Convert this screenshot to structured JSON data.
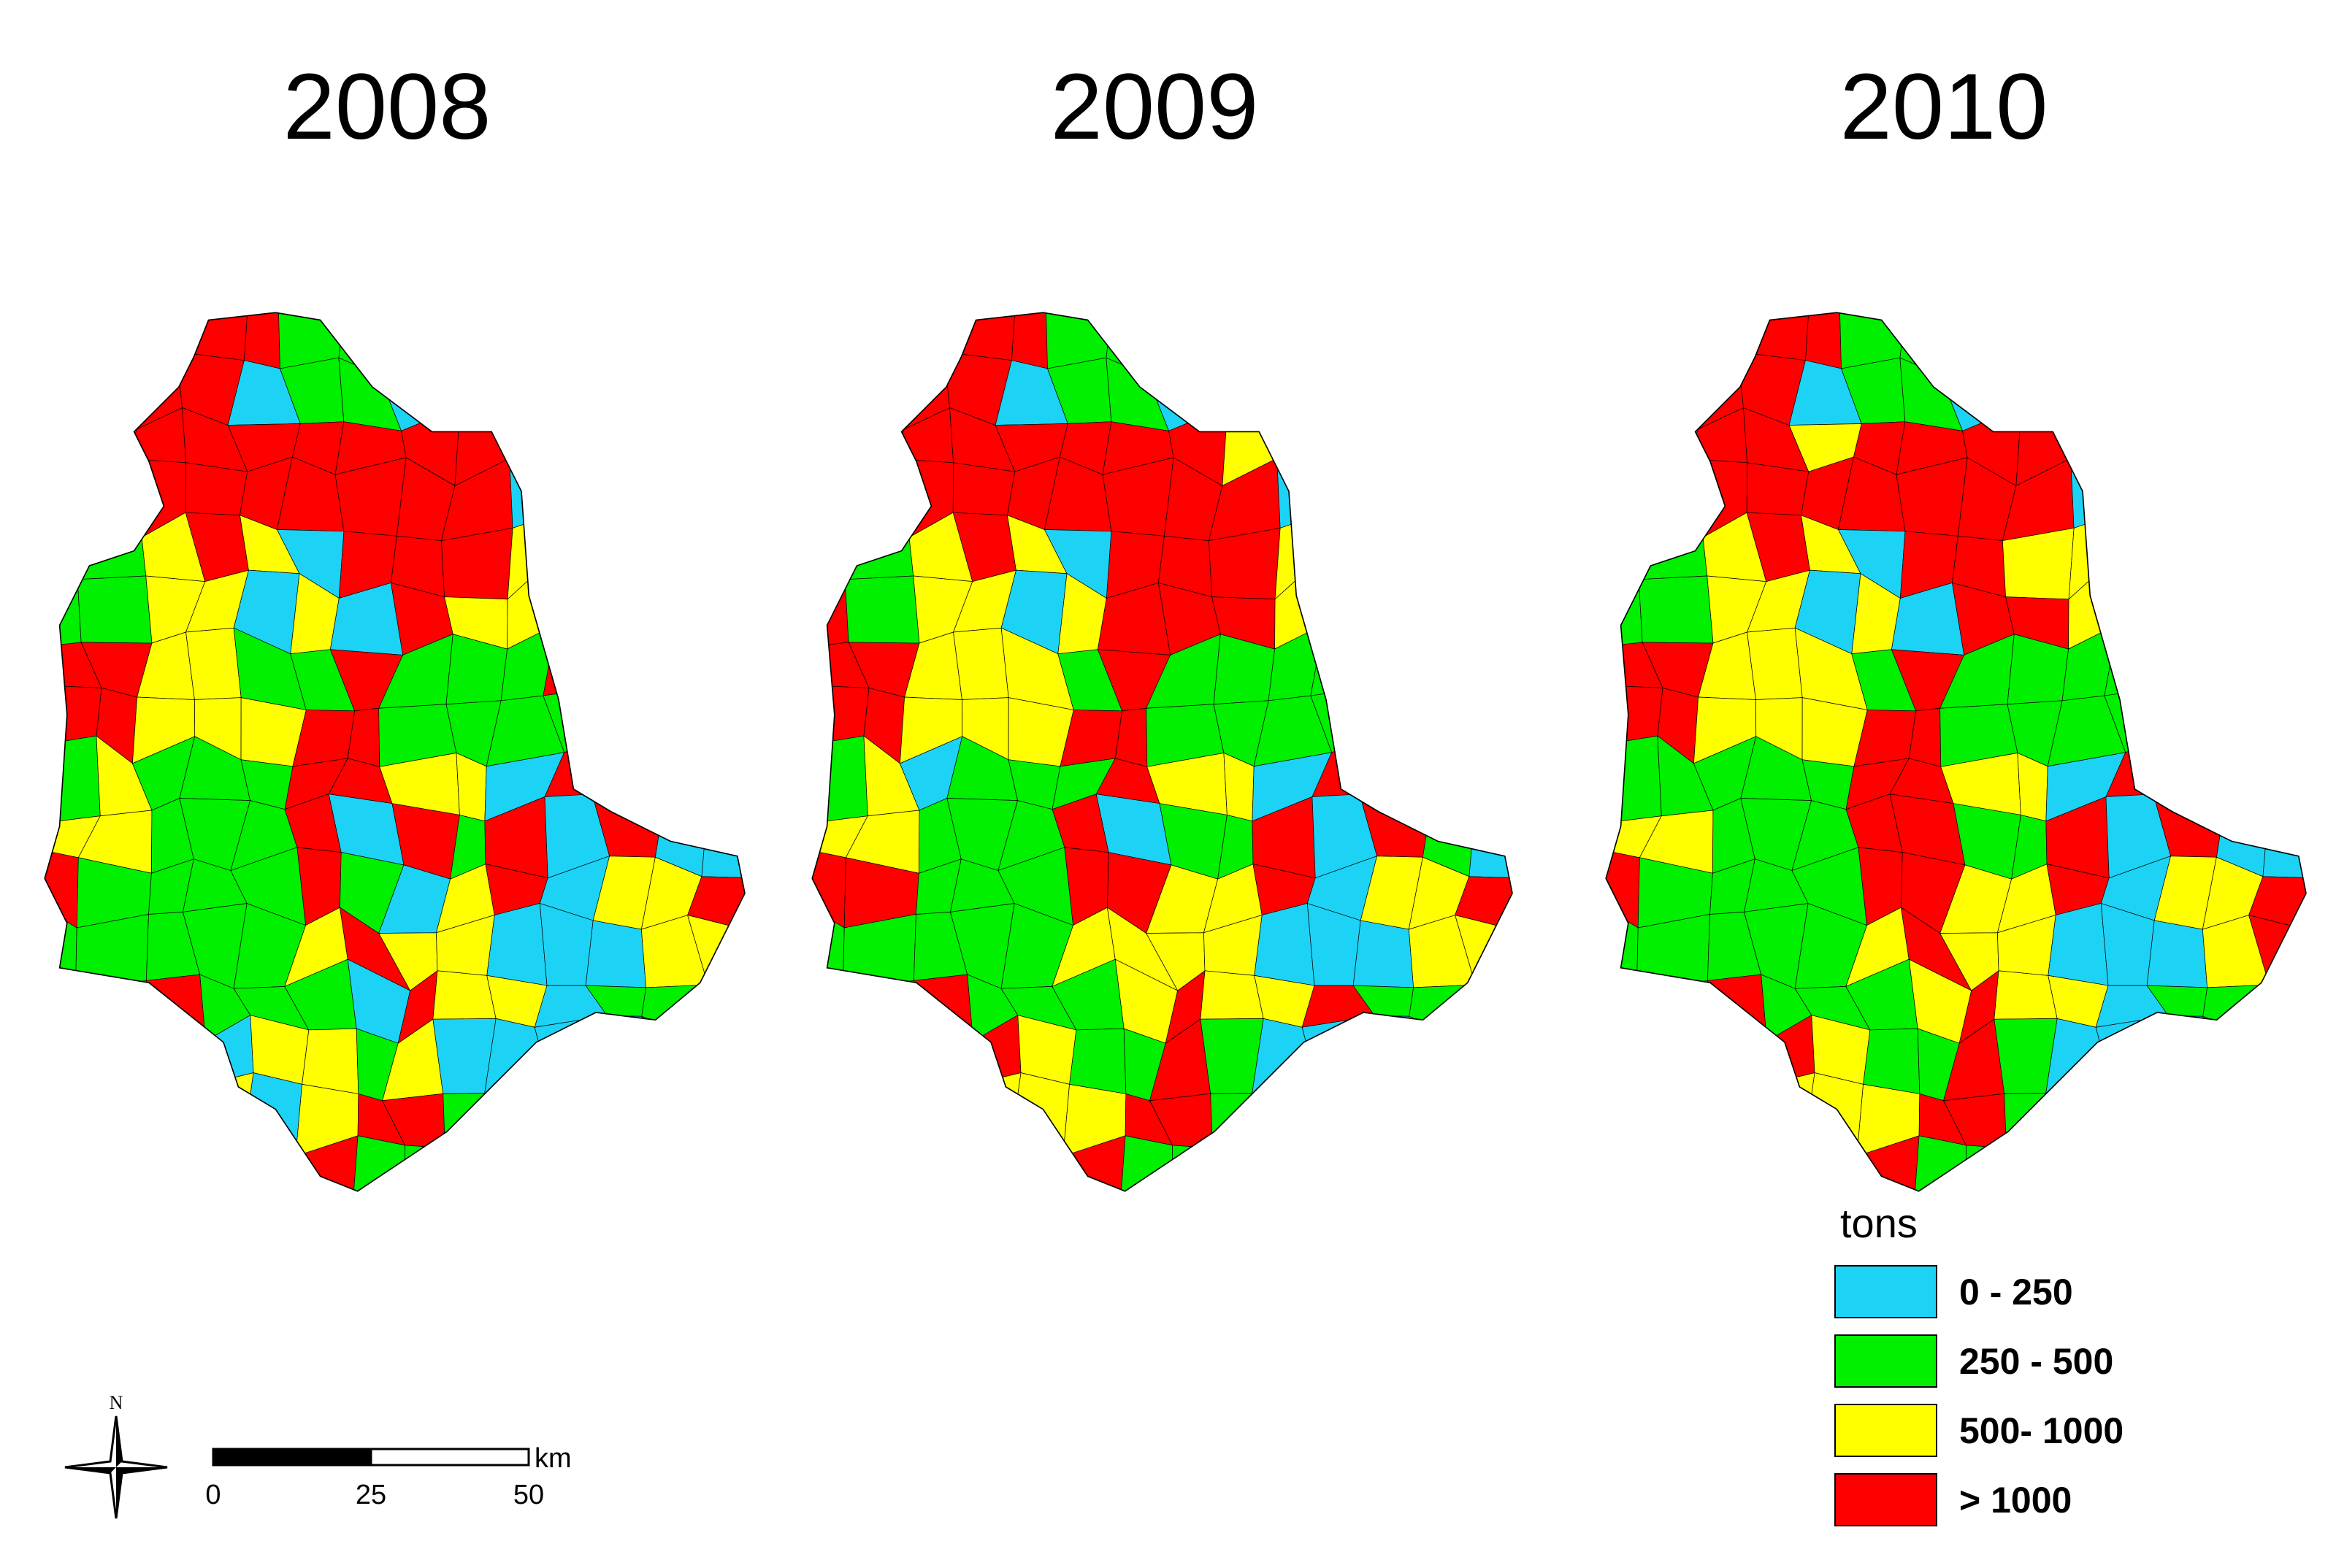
{
  "titles": [
    "2008",
    "2009",
    "2010"
  ],
  "legend": {
    "title": "tons",
    "items": [
      {
        "label": "0 - 250",
        "color": "#1dd3f5"
      },
      {
        "label": "250 - 500",
        "color": "#00f000"
      },
      {
        "label": "500- 1000",
        "color": "#ffff00"
      },
      {
        "label": "> 1000",
        "color": "#ff0000"
      }
    ]
  },
  "north": "N",
  "scale_bar": {
    "unit": "km",
    "ticks": [
      0,
      25,
      50
    ]
  }
}
